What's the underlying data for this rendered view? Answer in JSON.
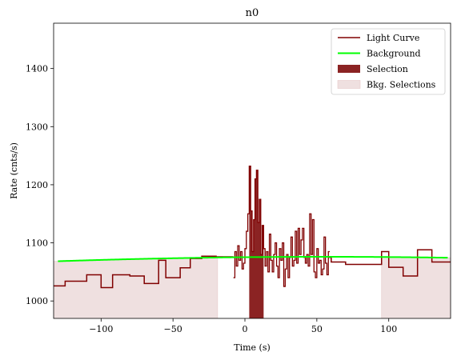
{
  "chart_data": {
    "type": "line",
    "title": "n0",
    "xlabel": "Time (s)",
    "ylabel": "Rate (cnts/s)",
    "xlim": [
      -133,
      143
    ],
    "ylim": [
      970,
      1478
    ],
    "xticks": [
      -100,
      -50,
      0,
      50,
      100
    ],
    "xtick_labels": [
      "−100",
      "−50",
      "0",
      "50",
      "100"
    ],
    "yticks": [
      1000,
      1100,
      1200,
      1300,
      1400
    ],
    "ytick_labels": [
      "1000",
      "1100",
      "1200",
      "1300",
      "1400"
    ],
    "grid": false,
    "legend_position": "top-right",
    "legend": [
      {
        "label": "Light Curve",
        "kind": "line",
        "color": "#800000"
      },
      {
        "label": "Background",
        "kind": "line",
        "color": "#00ff00"
      },
      {
        "label": "Selection",
        "kind": "patch",
        "color": "#8b2323"
      },
      {
        "label": "Bkg. Selections",
        "kind": "patch",
        "color": "#efe0e0"
      }
    ],
    "light_curve": {
      "color": "#800000",
      "edges": [
        -133,
        -125,
        -110,
        -100,
        -92,
        -80,
        -70,
        -60,
        -55,
        -45,
        -38,
        -30,
        -20,
        -7,
        0,
        5,
        10,
        15,
        20,
        25,
        30,
        35,
        40,
        45,
        50,
        55,
        60,
        70,
        80,
        90,
        95,
        100,
        105,
        110,
        120,
        130,
        143
      ],
      "values": [
        1026,
        1034,
        1045,
        1023,
        1045,
        1043,
        1030,
        1070,
        1040,
        1057,
        1073,
        1077,
        1076,
        1067,
        1072,
        1140,
        1100,
        1080,
        1070,
        1060,
        1075,
        1085,
        1080,
        1070,
        1100,
        1075,
        1067,
        1063,
        1063,
        1063,
        1085,
        1058,
        1058,
        1043,
        1088,
        1067
      ]
    },
    "light_curve_fine": {
      "color": "#800000",
      "x": [
        -8,
        -7,
        -6,
        -5,
        -4,
        -3,
        -2,
        -1,
        0,
        1,
        2,
        3,
        4,
        5,
        6,
        7,
        8,
        9,
        10,
        11,
        12,
        13,
        14,
        15,
        16,
        17,
        18,
        19,
        20,
        21,
        22,
        23,
        24,
        25,
        26,
        27,
        28,
        29,
        30,
        31,
        32,
        33,
        34,
        35,
        36,
        37,
        38,
        39,
        40,
        41,
        42,
        43,
        44,
        45,
        46,
        47,
        48,
        49,
        50,
        51,
        52,
        53,
        54,
        55,
        56,
        57,
        58
      ],
      "y": [
        1040,
        1085,
        1060,
        1095,
        1070,
        1085,
        1055,
        1065,
        1090,
        1120,
        1150,
        1232,
        1155,
        1085,
        1140,
        1210,
        1225,
        1135,
        1175,
        1080,
        1130,
        1090,
        1060,
        1085,
        1050,
        1115,
        1070,
        1050,
        1080,
        1100,
        1060,
        1040,
        1090,
        1070,
        1100,
        1025,
        1055,
        1080,
        1040,
        1075,
        1110,
        1060,
        1070,
        1120,
        1065,
        1125,
        1080,
        1105,
        1125,
        1075,
        1065,
        1080,
        1060,
        1150,
        1080,
        1140,
        1050,
        1040,
        1090,
        1065,
        1070,
        1045,
        1055,
        1110,
        1065,
        1045,
        1085
      ]
    },
    "background": {
      "color": "#00ff00",
      "a": 1076,
      "b": 0.00022,
      "x0": 56,
      "x_range": [
        -130,
        141
      ]
    },
    "selection": {
      "x_range": [
        3,
        13
      ],
      "color": "#8b2323"
    },
    "bkg_selections": [
      {
        "x_range": [
          -133,
          -19
        ]
      },
      {
        "x_range": [
          95,
          143
        ]
      }
    ],
    "bkg_color": "#efe0e0"
  }
}
